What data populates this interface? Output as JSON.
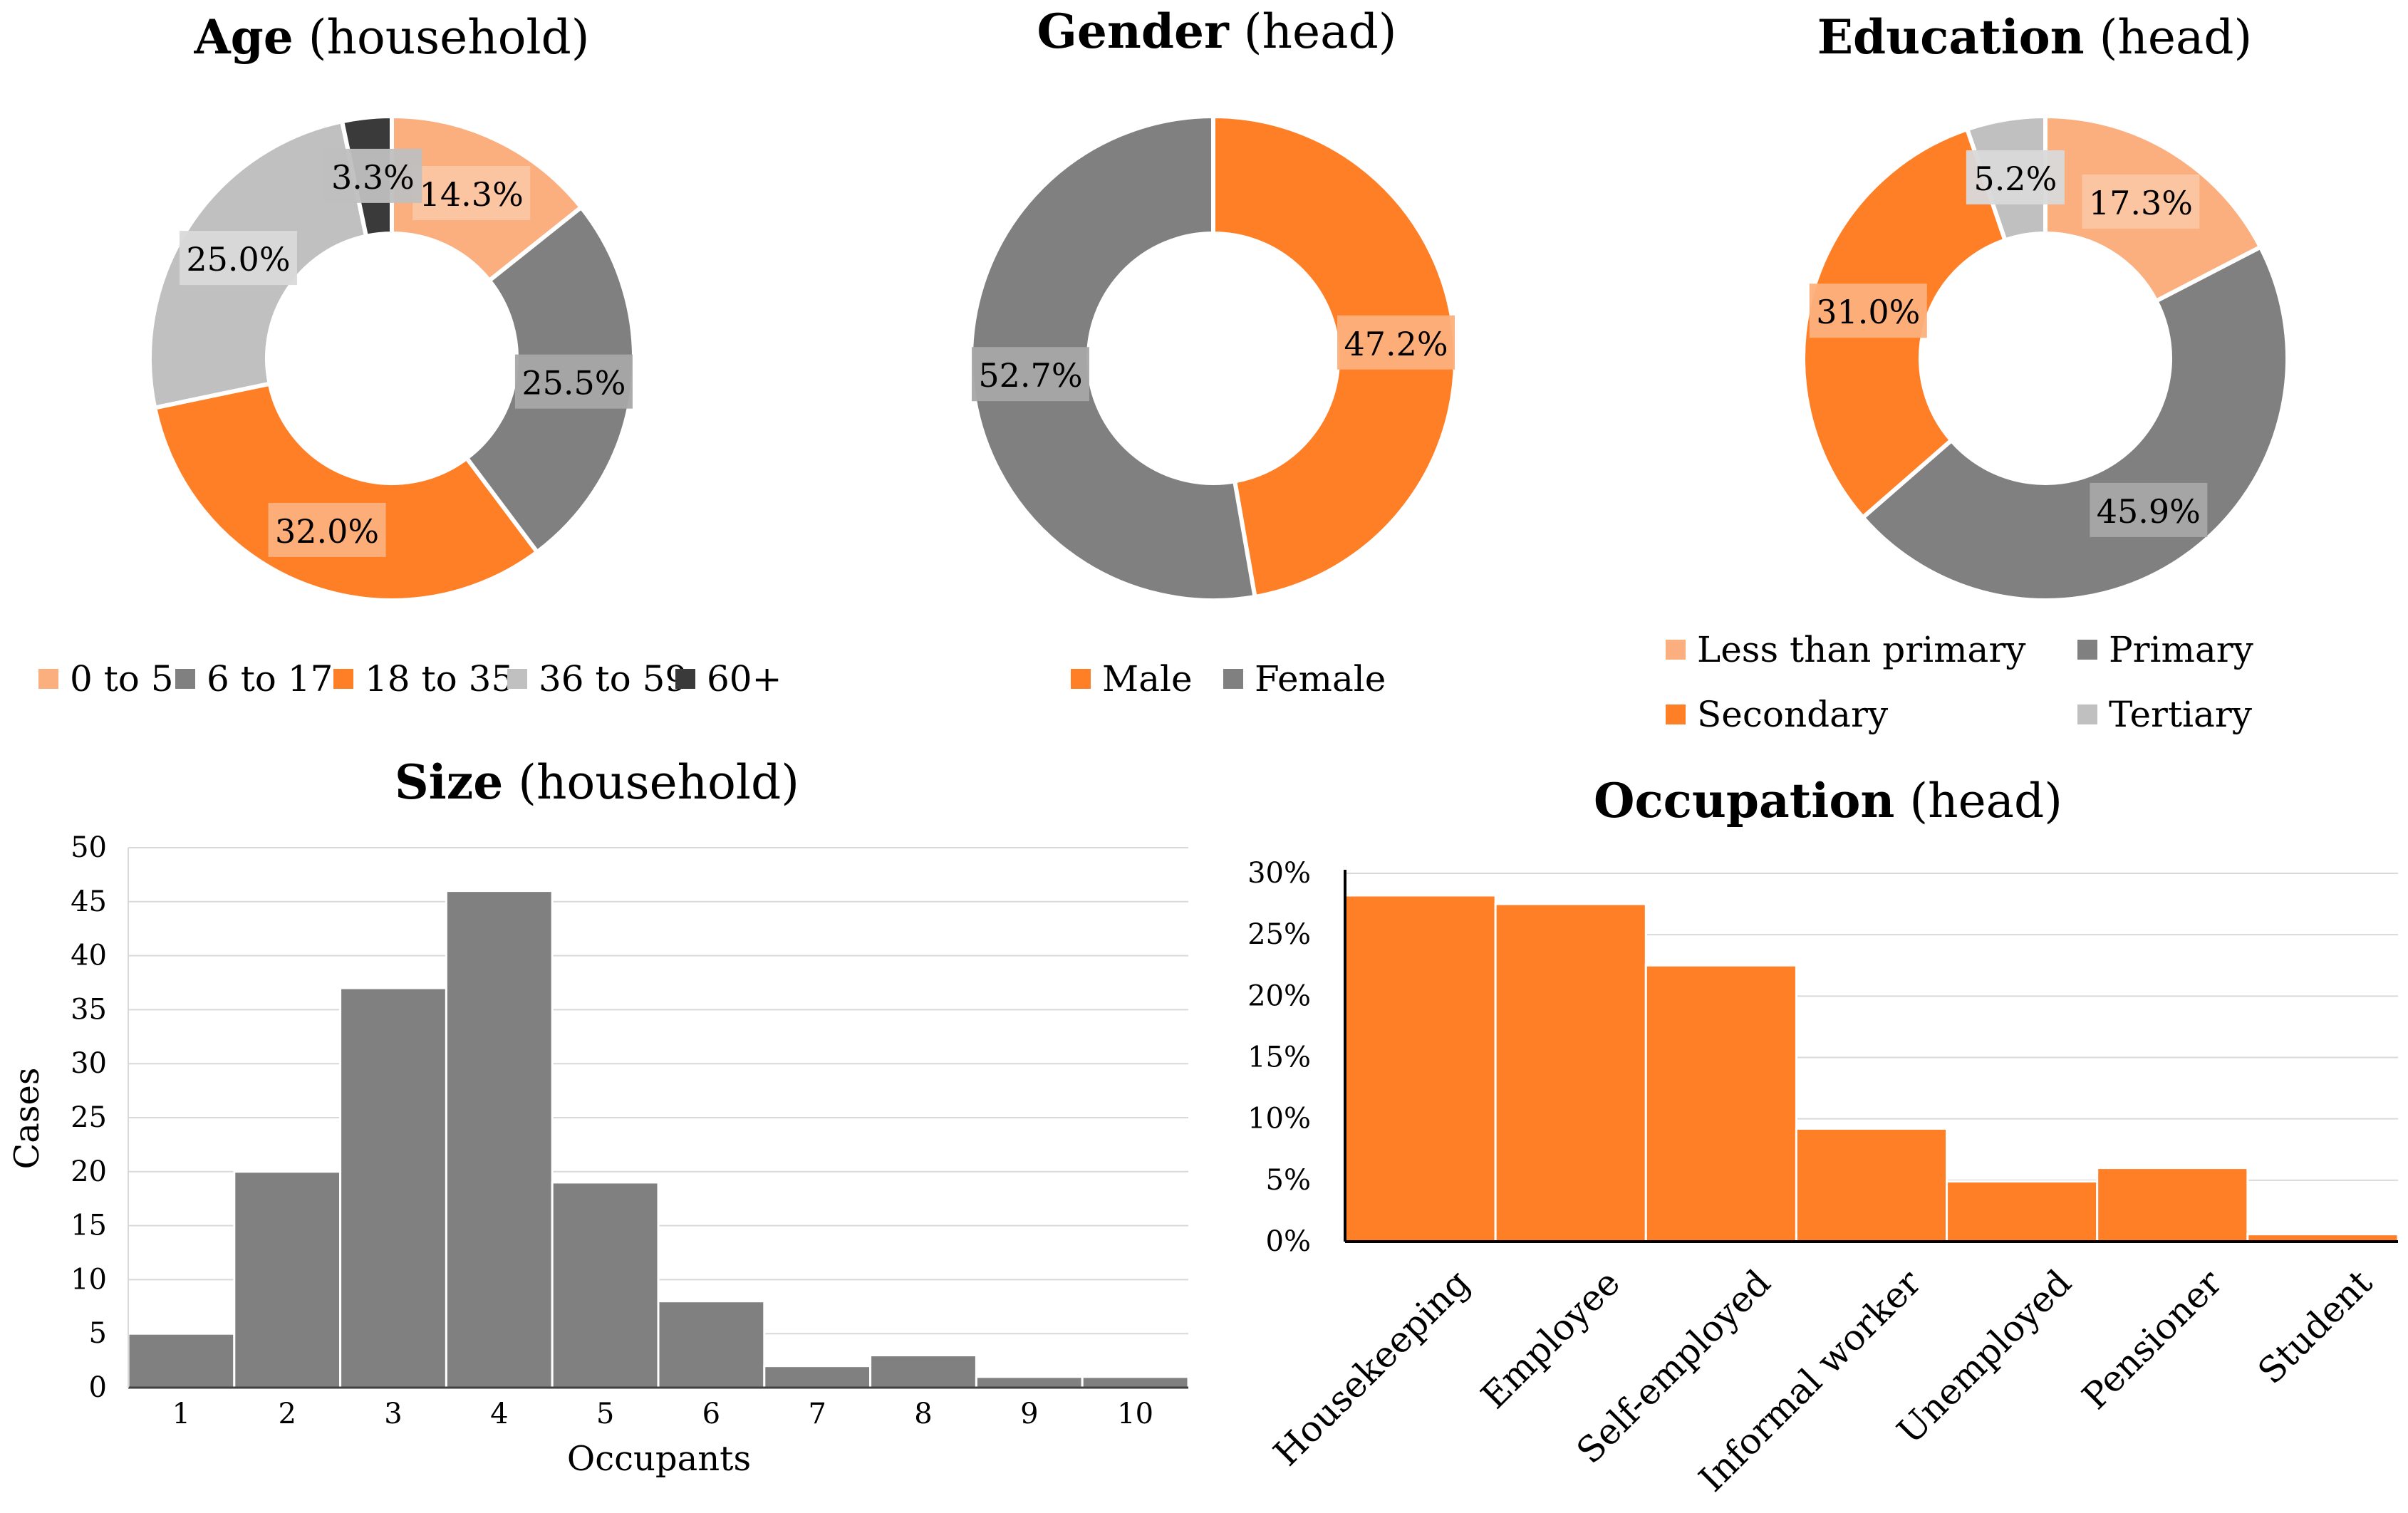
{
  "chart_data": [
    {
      "id": "age",
      "type": "pie",
      "title_bold": "Age",
      "title_rest": "(household)",
      "categories": [
        "0 to 5",
        "6 to 17",
        "18 to 35",
        "36 to 59",
        "60+"
      ],
      "values": [
        14.3,
        25.5,
        32.0,
        25.0,
        3.3
      ],
      "labels": [
        "14.3%",
        "25.5%",
        "32.0%",
        "25.0%",
        "3.3%"
      ],
      "colors": [
        "#FBAE7E",
        "#808080",
        "#FF7F27",
        "#C0C0C0",
        "#3A3A3A"
      ],
      "label_bg": [
        "#FCC6A3",
        "#A6A6A6",
        "#FDB07C",
        "#D9D9D9",
        "#BFBFBF"
      ],
      "legend_position": "bottom"
    },
    {
      "id": "gender",
      "type": "pie",
      "title_bold": "Gender",
      "title_rest": "(head)",
      "categories": [
        "Male",
        "Female"
      ],
      "values": [
        47.2,
        52.7
      ],
      "labels": [
        "47.2%",
        "52.7%"
      ],
      "colors": [
        "#FF7F27",
        "#808080"
      ],
      "label_bg": [
        "#FDB07C",
        "#A6A6A6"
      ],
      "legend_position": "bottom"
    },
    {
      "id": "education",
      "type": "pie",
      "title_bold": "Education",
      "title_rest": "(head)",
      "categories": [
        "Less than primary",
        "Primary",
        "Secondary",
        "Tertiary"
      ],
      "values": [
        17.3,
        45.9,
        31.0,
        5.2
      ],
      "labels": [
        "17.3%",
        "45.9%",
        "31.0%",
        "5.2%"
      ],
      "colors": [
        "#FBAE7E",
        "#808080",
        "#FF7F27",
        "#C0C0C0"
      ],
      "label_bg": [
        "#FCC6A3",
        "#A6A6A6",
        "#FDB07C",
        "#D9D9D9"
      ],
      "legend_position": "bottom"
    },
    {
      "id": "size",
      "type": "bar",
      "title_bold": "Size",
      "title_rest": "(household)",
      "categories": [
        "1",
        "2",
        "3",
        "4",
        "5",
        "6",
        "7",
        "8",
        "9",
        "10"
      ],
      "values": [
        5,
        20,
        37,
        46,
        19,
        8,
        2,
        3,
        1,
        1
      ],
      "xlabel": "Occupants",
      "ylabel": "Cases",
      "ylim": [
        0,
        50
      ],
      "yticks": [
        0,
        5,
        10,
        15,
        20,
        25,
        30,
        35,
        40,
        45,
        50
      ],
      "ytick_labels": [
        "0",
        "5",
        "10",
        "15",
        "20",
        "25",
        "30",
        "35",
        "40",
        "45",
        "50"
      ],
      "color": "#808080",
      "grid": true
    },
    {
      "id": "occupation",
      "type": "bar",
      "title_bold": "Occupation",
      "title_rest": "(head)",
      "categories": [
        "Housekeeping",
        "Employee",
        "Self-employed",
        "Informal worker",
        "Unemployed",
        "Pensioner",
        "Student"
      ],
      "values": [
        28.2,
        27.5,
        22.5,
        9.2,
        4.9,
        6.0,
        0.6
      ],
      "xlabel": "",
      "ylabel": "",
      "ylim": [
        0,
        30
      ],
      "yticks": [
        0,
        5,
        10,
        15,
        20,
        25,
        30
      ],
      "ytick_labels": [
        "0%",
        "5%",
        "10%",
        "15%",
        "20%",
        "25%",
        "30%"
      ],
      "color": "#FF7F27",
      "grid": true
    }
  ]
}
